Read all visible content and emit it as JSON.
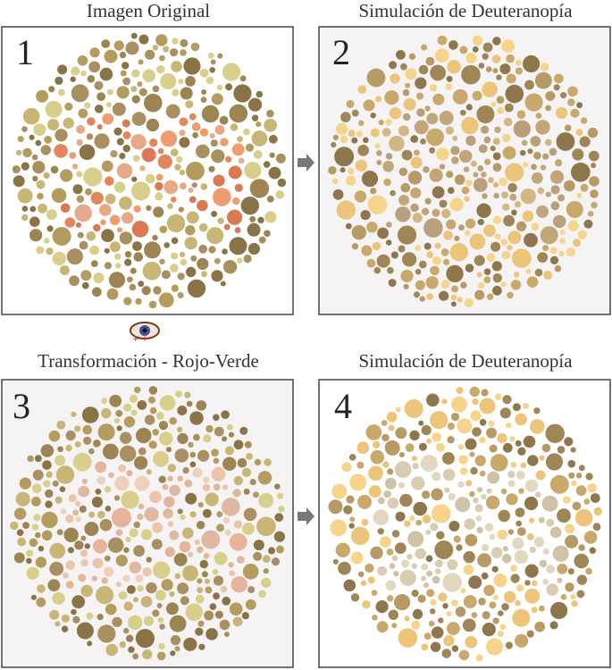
{
  "panels": [
    {
      "title": "Imagen Original",
      "number": "1"
    },
    {
      "title": "Simulación de Deuteranopía",
      "number": "2"
    },
    {
      "title": "Transformación - Rojo-Verde",
      "number": "3"
    },
    {
      "title": "Simulación de Deuteranopía",
      "number": "4"
    }
  ]
}
